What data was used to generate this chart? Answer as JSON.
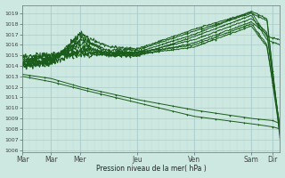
{
  "bg_color": "#cce8e0",
  "grid_major_color": "#aacccc",
  "grid_minor_color": "#c0ddd8",
  "line_color": "#1a5c1a",
  "ylabel_ticks": [
    1006,
    1007,
    1008,
    1009,
    1010,
    1011,
    1012,
    1013,
    1014,
    1015,
    1016,
    1017,
    1018,
    1019
  ],
  "ylim": [
    1005.8,
    1019.8
  ],
  "xlabel": "Pression niveau de la mer( hPa )",
  "day_labels": [
    "Mar",
    "Mar",
    "Mer",
    "Jeu",
    "Ven",
    "Sam",
    "Dir"
  ],
  "day_positions": [
    0,
    24,
    48,
    96,
    144,
    192,
    210
  ],
  "xlim": [
    0,
    216
  ]
}
